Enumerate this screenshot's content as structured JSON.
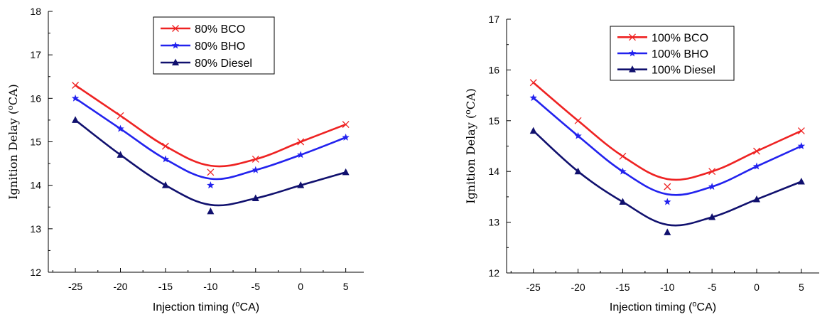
{
  "chart_data": [
    {
      "type": "line",
      "title": "",
      "xlabel": "Injection timing (°CA)",
      "ylabel": "Ignition Delay (°CA)",
      "x": [
        -25,
        -20,
        -15,
        -10,
        -5,
        0,
        5
      ],
      "xticks": [
        -25,
        -20,
        -15,
        -10,
        -5,
        0,
        5
      ],
      "xlim": [
        -28,
        7
      ],
      "ylim": [
        12,
        18
      ],
      "yticks": [
        12,
        13,
        14,
        15,
        16,
        17,
        18
      ],
      "grid": false,
      "legend_position": "top-center",
      "series": [
        {
          "name": "80% BCO",
          "color": "#ee2222",
          "marker": "x",
          "values": [
            16.3,
            15.6,
            14.9,
            14.3,
            14.6,
            15.0,
            15.4
          ]
        },
        {
          "name": "80% BHO",
          "color": "#2222ee",
          "marker": "star",
          "values": [
            16.0,
            15.3,
            14.6,
            14.0,
            14.35,
            14.7,
            15.1
          ]
        },
        {
          "name": "80% Diesel",
          "color": "#10106e",
          "marker": "triangle",
          "values": [
            15.5,
            14.7,
            14.0,
            13.4,
            13.7,
            14.0,
            14.3
          ]
        }
      ]
    },
    {
      "type": "line",
      "title": "",
      "xlabel": "Injection timing (°CA)",
      "ylabel": "Ignition Delay (°CA)",
      "x": [
        -25,
        -20,
        -15,
        -10,
        -5,
        0,
        5
      ],
      "xticks": [
        -25,
        -20,
        -15,
        -10,
        -5,
        0,
        5
      ],
      "xlim": [
        -28,
        7
      ],
      "ylim": [
        12,
        17
      ],
      "yticks": [
        12,
        13,
        14,
        15,
        16,
        17
      ],
      "grid": false,
      "legend_position": "top-center",
      "series": [
        {
          "name": "100% BCO",
          "color": "#ee2222",
          "marker": "x",
          "values": [
            15.75,
            15.0,
            14.3,
            13.7,
            14.0,
            14.4,
            14.8
          ]
        },
        {
          "name": "100% BHO",
          "color": "#2222ee",
          "marker": "star",
          "values": [
            15.45,
            14.7,
            14.0,
            13.4,
            13.7,
            14.1,
            14.5
          ]
        },
        {
          "name": "100% Diesel",
          "color": "#10106e",
          "marker": "triangle",
          "values": [
            14.8,
            14.0,
            13.4,
            12.8,
            13.1,
            13.45,
            13.8
          ]
        }
      ]
    }
  ]
}
